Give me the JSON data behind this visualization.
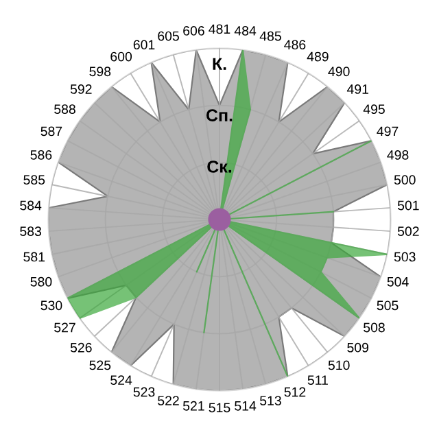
{
  "chart_data": {
    "type": "radar",
    "categories": [
      "481",
      "484",
      "485",
      "486",
      "489",
      "490",
      "491",
      "495",
      "497",
      "498",
      "500",
      "501",
      "502",
      "503",
      "504",
      "505",
      "508",
      "509",
      "510",
      "511",
      "512",
      "513",
      "514",
      "515",
      "521",
      "522",
      "523",
      "524",
      "525",
      "526",
      "527",
      "530",
      "580",
      "581",
      "583",
      "584",
      "585",
      "586",
      "587",
      "588",
      "592",
      "598",
      "600",
      "601",
      "605",
      "606"
    ],
    "series": [
      {
        "color": "#b4b4b4",
        "values": [
          2,
          3,
          3,
          3,
          2,
          3,
          3,
          2,
          3,
          3,
          3,
          2,
          2,
          2,
          3,
          3,
          3,
          3,
          2,
          2,
          3,
          3,
          3,
          3,
          3,
          3,
          2,
          3,
          3,
          2,
          2,
          3,
          3,
          3,
          3,
          3,
          2,
          3,
          3,
          3,
          3,
          3,
          2,
          3,
          2,
          3
        ]
      },
      {
        "color": "#3ca83c",
        "values": [
          0,
          3,
          2,
          0,
          0,
          0,
          0,
          0,
          3,
          0,
          0,
          2,
          0,
          3,
          2,
          2,
          3,
          0,
          0,
          0,
          3,
          0,
          0,
          0,
          2,
          0,
          1,
          0,
          0,
          2,
          3,
          3,
          0,
          0,
          0,
          0,
          0,
          0,
          0,
          0,
          0,
          0,
          0,
          0,
          0,
          0
        ]
      }
    ],
    "ylim": [
      0,
      3
    ],
    "yticks": [
      {
        "value": 1,
        "label": "Ск."
      },
      {
        "value": 2,
        "label": "Сп."
      },
      {
        "value": 3,
        "label": "К."
      }
    ],
    "grid": true
  }
}
